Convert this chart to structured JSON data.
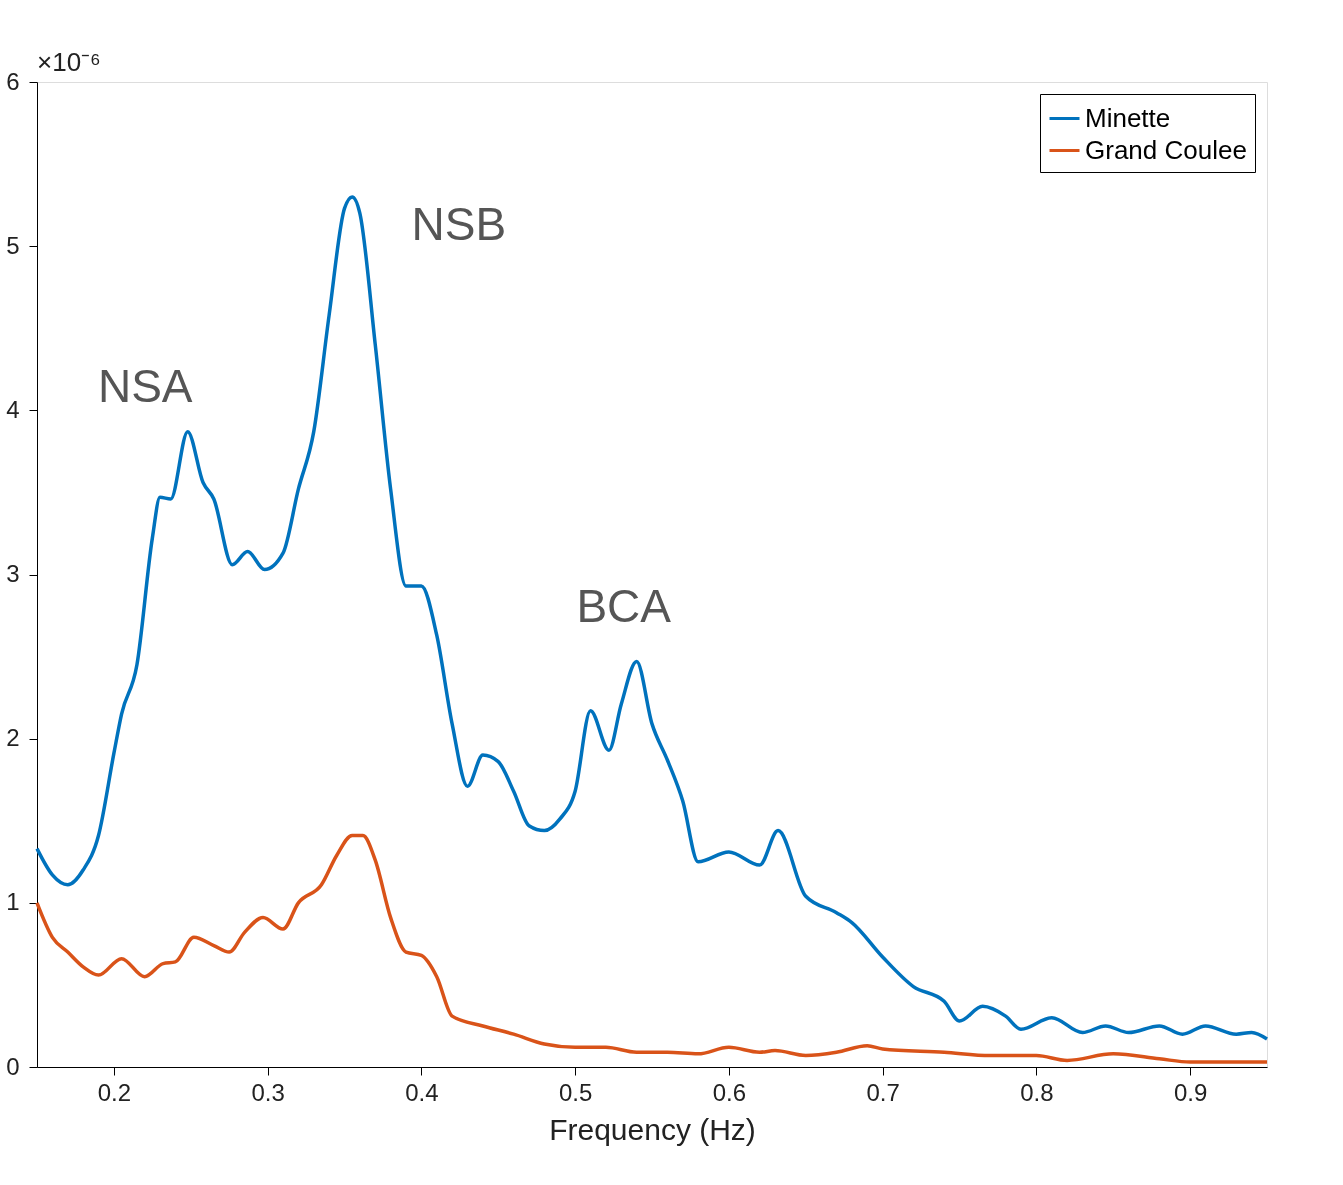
{
  "chart_data": {
    "type": "line",
    "xlabel": "Frequency (Hz)",
    "xlim": [
      0.15,
      0.95
    ],
    "xticks": [
      0.2,
      0.3,
      0.4,
      0.5,
      0.6,
      0.7,
      0.8,
      0.9
    ],
    "ylim": [
      0,
      6
    ],
    "yticks": [
      0,
      1,
      2,
      3,
      4,
      5,
      6
    ],
    "grid": false,
    "legend": "top right",
    "line_style": "solid",
    "marker": "none",
    "annotations": [
      "×10⁻⁶",
      "NSA",
      "NSB",
      "BCA"
    ],
    "series": [
      {
        "name": "Minette",
        "color": "#0072bd",
        "x": [
          0.15,
          0.16,
          0.17,
          0.18,
          0.19,
          0.2,
          0.205,
          0.215,
          0.225,
          0.23,
          0.237,
          0.248,
          0.258,
          0.265,
          0.277,
          0.287,
          0.298,
          0.31,
          0.32,
          0.33,
          0.34,
          0.35,
          0.355,
          0.36,
          0.37,
          0.38,
          0.39,
          0.4,
          0.41,
          0.42,
          0.43,
          0.44,
          0.45,
          0.46,
          0.47,
          0.48,
          0.49,
          0.5,
          0.51,
          0.522,
          0.53,
          0.54,
          0.55,
          0.56,
          0.57,
          0.58,
          0.6,
          0.62,
          0.632,
          0.65,
          0.67,
          0.68,
          0.7,
          0.72,
          0.74,
          0.75,
          0.765,
          0.78,
          0.79,
          0.81,
          0.83,
          0.845,
          0.86,
          0.88,
          0.895,
          0.91,
          0.93,
          0.94,
          0.95
        ],
        "values": [
          1.33,
          1.17,
          1.11,
          1.2,
          1.41,
          1.91,
          2.15,
          2.45,
          3.22,
          3.47,
          3.46,
          3.87,
          3.56,
          3.46,
          3.06,
          3.14,
          3.03,
          3.13,
          3.52,
          3.87,
          4.58,
          5.23,
          5.3,
          5.2,
          4.4,
          3.52,
          2.93,
          2.93,
          2.63,
          2.09,
          1.71,
          1.9,
          1.86,
          1.68,
          1.47,
          1.44,
          1.51,
          1.68,
          2.17,
          1.93,
          2.21,
          2.47,
          2.09,
          1.87,
          1.62,
          1.25,
          1.31,
          1.23,
          1.44,
          1.04,
          0.94,
          0.88,
          0.67,
          0.49,
          0.4,
          0.28,
          0.37,
          0.31,
          0.23,
          0.3,
          0.21,
          0.25,
          0.21,
          0.25,
          0.2,
          0.25,
          0.2,
          0.21,
          0.17
        ]
      },
      {
        "name": "Grand Coulee",
        "color": "#d95319",
        "x": [
          0.15,
          0.16,
          0.17,
          0.18,
          0.19,
          0.205,
          0.22,
          0.232,
          0.24,
          0.252,
          0.265,
          0.275,
          0.285,
          0.297,
          0.31,
          0.32,
          0.335,
          0.345,
          0.355,
          0.362,
          0.37,
          0.38,
          0.39,
          0.4,
          0.41,
          0.42,
          0.44,
          0.46,
          0.48,
          0.5,
          0.52,
          0.54,
          0.56,
          0.58,
          0.6,
          0.62,
          0.63,
          0.65,
          0.67,
          0.69,
          0.7,
          0.74,
          0.77,
          0.8,
          0.82,
          0.85,
          0.88,
          0.9,
          0.95
        ],
        "values": [
          1.0,
          0.79,
          0.7,
          0.61,
          0.56,
          0.66,
          0.55,
          0.63,
          0.64,
          0.79,
          0.74,
          0.7,
          0.82,
          0.91,
          0.84,
          1.0,
          1.11,
          1.29,
          1.41,
          1.41,
          1.26,
          0.91,
          0.7,
          0.68,
          0.55,
          0.31,
          0.25,
          0.2,
          0.14,
          0.12,
          0.12,
          0.09,
          0.09,
          0.08,
          0.12,
          0.09,
          0.1,
          0.07,
          0.09,
          0.13,
          0.11,
          0.09,
          0.07,
          0.07,
          0.04,
          0.08,
          0.05,
          0.03,
          0.03
        ]
      }
    ]
  }
}
